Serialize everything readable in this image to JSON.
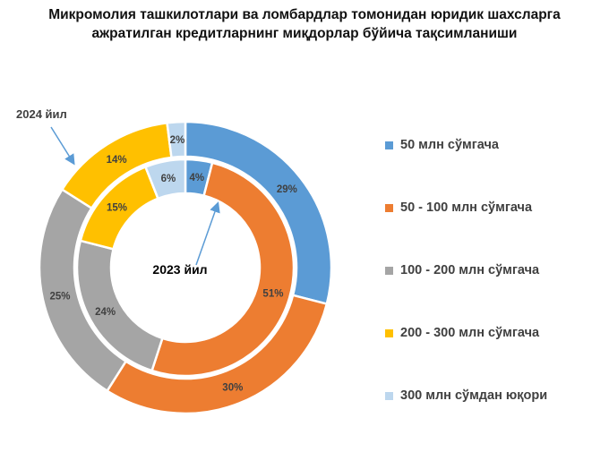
{
  "title_line1": "Микромолия ташкилотлари ва ломбардлар томонидан юридик шахсларга",
  "title_line2": "ажратилган кредитларнинг миқдорлар бўйича тақсимланиши",
  "chart_data": {
    "type": "pie",
    "subtype": "double-donut",
    "title": "Микромолия ташкилотлари ва ломбардлар томонидан юридик шахсларга ажратилган кредитларнинг миқдорлар бўйича тақсимланиши",
    "categories": [
      "50 млн сўмгача",
      "50 - 100 млн сўмгача",
      "100 - 200 млн сўмгача",
      "200 - 300 млн сўмгача",
      "300 млн сўмдан юқори"
    ],
    "colors": [
      "#5B9BD5",
      "#ED7D31",
      "#A5A5A5",
      "#FFC000",
      "#BDD7EE"
    ],
    "series": [
      {
        "name": "2024 йил",
        "ring": "outer",
        "values": [
          29,
          30,
          25,
          14,
          2
        ]
      },
      {
        "name": "2023 йил",
        "ring": "inner",
        "values": [
          4,
          51,
          24,
          15,
          6
        ]
      }
    ],
    "legend_position": "right"
  }
}
